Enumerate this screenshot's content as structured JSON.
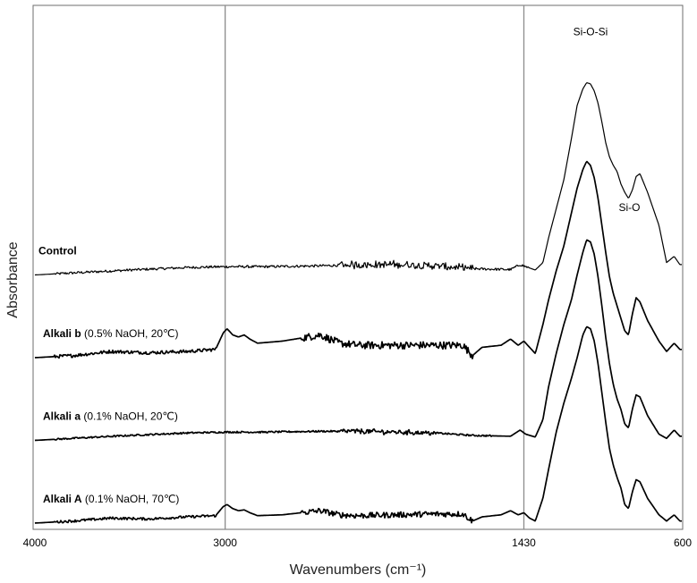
{
  "chart_data": {
    "type": "line",
    "title": "",
    "xlabel": "Wavenumbers (cm⁻¹)",
    "ylabel": "Absorbance",
    "x_reversed": true,
    "xlim": [
      4000,
      600
    ],
    "xticks": [
      {
        "value": 4000,
        "label": "4000"
      },
      {
        "value": 3000,
        "label": "3000"
      },
      {
        "value": 1430,
        "label": "1430"
      },
      {
        "value": 600,
        "label": "600"
      }
    ],
    "vlines": [
      3000,
      1430
    ],
    "ylim": [
      0,
      12
    ],
    "grid": false,
    "legend": "none",
    "annotations": [
      {
        "text": "Si-O-Si",
        "x": 1080,
        "y": 11.8
      },
      {
        "text": "Si-O",
        "x": 875,
        "y": 7.55
      }
    ],
    "series": [
      {
        "name": "Control",
        "offset": 6.0,
        "stroke_width": 1.2,
        "x": [
          4000,
          3800,
          3500,
          3200,
          3000,
          2800,
          2500,
          2300,
          2100,
          1900,
          1700,
          1500,
          1450,
          1420,
          1370,
          1330,
          1300,
          1260,
          1220,
          1180,
          1150,
          1120,
          1100,
          1080,
          1060,
          1040,
          1020,
          1000,
          980,
          960,
          940,
          920,
          900,
          880,
          860,
          840,
          820,
          780,
          720,
          680,
          640,
          610
        ],
        "y": [
          0.0,
          0.05,
          0.12,
          0.18,
          0.2,
          0.2,
          0.22,
          0.25,
          0.25,
          0.22,
          0.15,
          0.13,
          0.25,
          0.2,
          0.12,
          0.3,
          0.9,
          1.6,
          2.3,
          3.3,
          4.1,
          4.5,
          4.65,
          4.62,
          4.45,
          4.15,
          3.7,
          3.2,
          2.85,
          2.65,
          2.5,
          2.2,
          2.0,
          1.85,
          2.05,
          2.38,
          2.45,
          2.0,
          1.2,
          0.3,
          0.45,
          0.25
        ],
        "noise": [
          [
            2400,
            1700,
            0.08
          ],
          [
            3900,
            1400,
            0.03
          ]
        ]
      },
      {
        "name": "Alkali b",
        "name_suffix": "(0.5% NaOH, 20℃)",
        "offset": 4.0,
        "stroke_width": 1.7,
        "x": [
          4000,
          3800,
          3600,
          3400,
          3200,
          3050,
          3010,
          2990,
          2960,
          2930,
          2900,
          2870,
          2830,
          2700,
          2500,
          2400,
          2300,
          2100,
          1900,
          1750,
          1700,
          1650,
          1550,
          1500,
          1460,
          1430,
          1400,
          1370,
          1330,
          1300,
          1260,
          1220,
          1180,
          1150,
          1120,
          1100,
          1080,
          1060,
          1040,
          1020,
          1000,
          980,
          960,
          940,
          920,
          900,
          880,
          860,
          840,
          820,
          780,
          720,
          680,
          640,
          610
        ],
        "y": [
          0.0,
          0.05,
          0.15,
          0.12,
          0.15,
          0.2,
          0.6,
          0.7,
          0.55,
          0.5,
          0.55,
          0.45,
          0.35,
          0.4,
          0.55,
          0.35,
          0.3,
          0.3,
          0.3,
          0.3,
          0.05,
          0.25,
          0.3,
          0.45,
          0.3,
          0.4,
          0.25,
          0.1,
          0.8,
          1.4,
          2.1,
          2.7,
          3.5,
          4.1,
          4.55,
          4.75,
          4.65,
          4.35,
          3.85,
          3.2,
          2.55,
          1.95,
          1.55,
          1.25,
          0.95,
          0.65,
          0.55,
          1.05,
          1.45,
          1.35,
          0.9,
          0.4,
          0.15,
          0.35,
          0.2
        ],
        "noise": [
          [
            2600,
            1700,
            0.09
          ],
          [
            3900,
            3050,
            0.04
          ]
        ]
      },
      {
        "name": "Alkali a",
        "name_suffix": "(0.1% NaOH, 20℃)",
        "offset": 2.0,
        "stroke_width": 1.7,
        "x": [
          4000,
          3800,
          3500,
          3200,
          3000,
          2800,
          2500,
          2300,
          2100,
          1900,
          1700,
          1500,
          1450,
          1420,
          1370,
          1330,
          1300,
          1260,
          1220,
          1180,
          1150,
          1120,
          1100,
          1080,
          1060,
          1040,
          1020,
          1000,
          980,
          960,
          940,
          920,
          900,
          880,
          860,
          840,
          820,
          780,
          720,
          680,
          640,
          610
        ],
        "y": [
          0.0,
          0.05,
          0.12,
          0.18,
          0.2,
          0.2,
          0.22,
          0.22,
          0.2,
          0.18,
          0.12,
          0.1,
          0.25,
          0.15,
          0.08,
          0.5,
          1.3,
          2.1,
          2.8,
          3.4,
          4.0,
          4.55,
          4.85,
          4.8,
          4.5,
          3.95,
          3.25,
          2.5,
          1.85,
          1.35,
          1.0,
          0.75,
          0.4,
          0.3,
          0.75,
          1.1,
          1.05,
          0.6,
          0.15,
          0.05,
          0.25,
          0.1
        ],
        "noise": [
          [
            2400,
            1900,
            0.05
          ],
          [
            3900,
            1600,
            0.02
          ]
        ]
      },
      {
        "name": "Alkali A",
        "name_suffix": "(0.1% NaOH, 70℃)",
        "offset": 0.0,
        "stroke_width": 1.7,
        "x": [
          4000,
          3800,
          3600,
          3400,
          3200,
          3050,
          3010,
          2990,
          2960,
          2930,
          2900,
          2870,
          2830,
          2700,
          2500,
          2400,
          2300,
          2100,
          1900,
          1750,
          1700,
          1650,
          1550,
          1500,
          1460,
          1430,
          1400,
          1370,
          1330,
          1300,
          1260,
          1220,
          1180,
          1150,
          1120,
          1100,
          1080,
          1060,
          1040,
          1020,
          1000,
          980,
          960,
          940,
          920,
          900,
          880,
          860,
          840,
          820,
          780,
          720,
          680,
          640,
          610
        ],
        "y": [
          0.0,
          0.05,
          0.12,
          0.1,
          0.15,
          0.18,
          0.4,
          0.45,
          0.35,
          0.3,
          0.32,
          0.25,
          0.18,
          0.2,
          0.3,
          0.2,
          0.18,
          0.2,
          0.22,
          0.22,
          0.05,
          0.15,
          0.2,
          0.3,
          0.2,
          0.25,
          0.12,
          0.05,
          0.6,
          1.3,
          2.2,
          2.9,
          3.5,
          4.0,
          4.55,
          4.75,
          4.7,
          4.4,
          3.85,
          3.15,
          2.45,
          1.8,
          1.4,
          1.1,
          0.85,
          0.45,
          0.35,
          0.75,
          1.05,
          1.0,
          0.6,
          0.2,
          0.05,
          0.2,
          0.05
        ],
        "noise": [
          [
            2600,
            1700,
            0.07
          ],
          [
            3900,
            3050,
            0.03
          ]
        ]
      }
    ]
  }
}
